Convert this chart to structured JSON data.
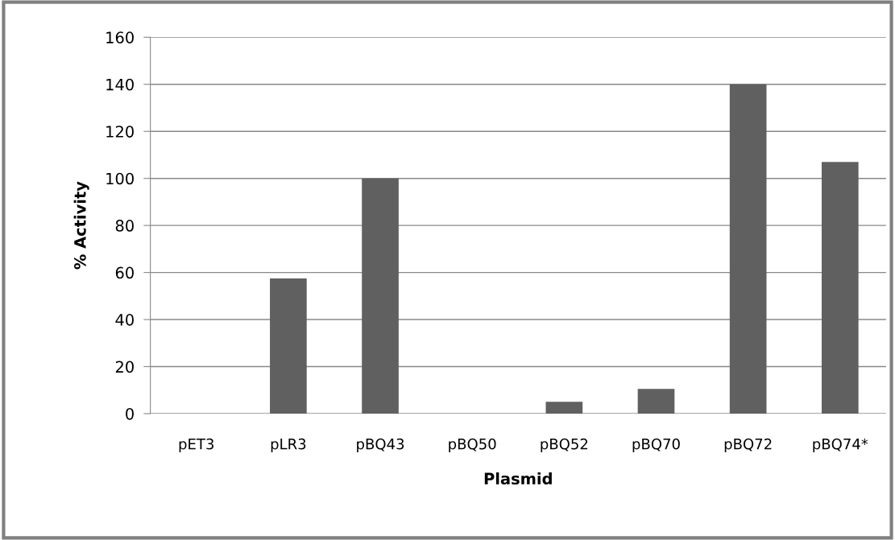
{
  "chart_data": {
    "type": "bar",
    "xlabel": "Plasmid",
    "ylabel": "% Activity",
    "categories": [
      "pET3",
      "pLR3",
      "pBQ43",
      "pBQ50",
      "pBQ52",
      "pBQ70",
      "pBQ72",
      "pBQ74*"
    ],
    "values": [
      0,
      57.5,
      100,
      0,
      5,
      10.5,
      140,
      107
    ],
    "color": "#606060",
    "ylim": [
      0,
      160
    ],
    "yticks": [
      0,
      20,
      40,
      60,
      80,
      100,
      120,
      140,
      160
    ],
    "grid": "y",
    "legend": false
  }
}
